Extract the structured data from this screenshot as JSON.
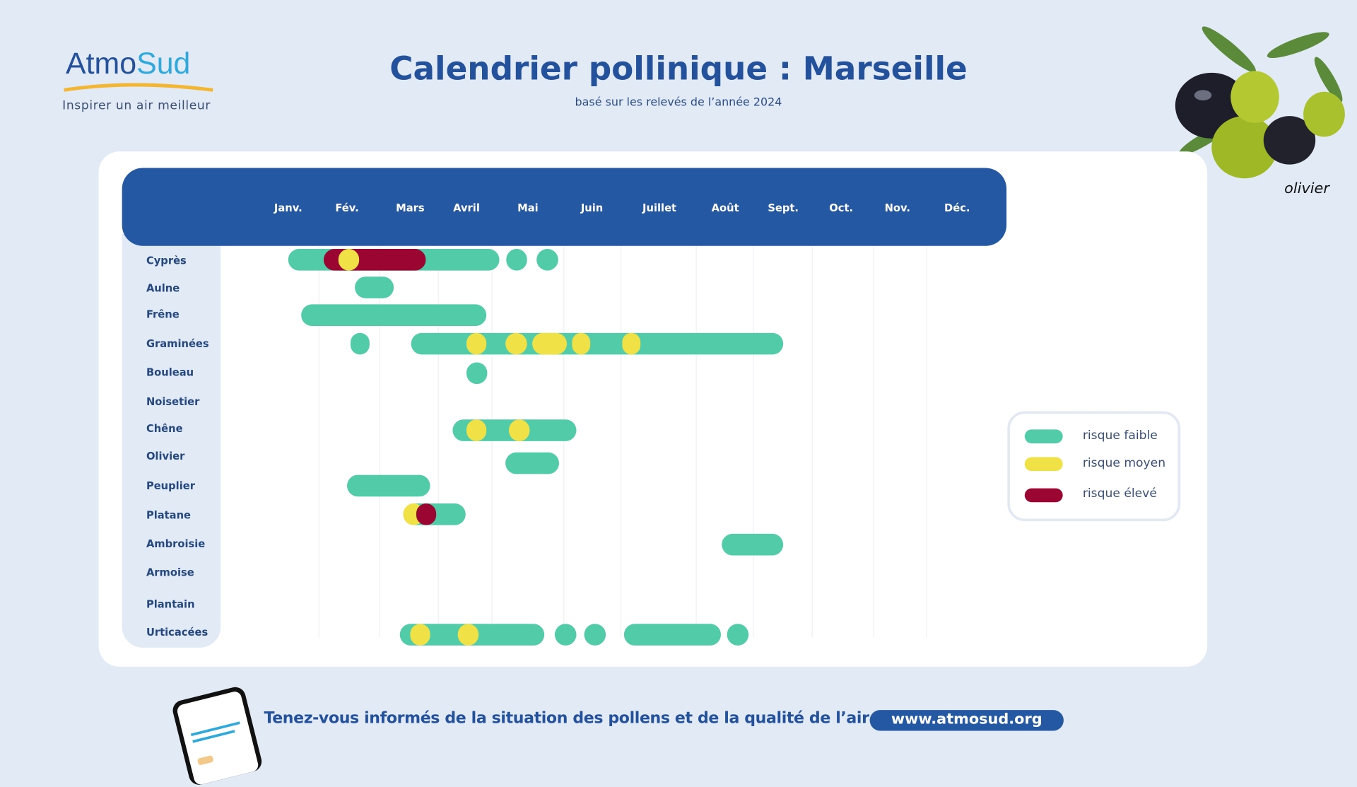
{
  "logo": {
    "part1": "Atmo",
    "part2": "Sud",
    "tagline": "Inspirer un air meilleur"
  },
  "header": {
    "title": "Calendrier pollinique : Marseille",
    "subtitle": "basé sur les relevés de l’année 2024"
  },
  "illustration": {
    "label": "olivier"
  },
  "colors": {
    "faible": "#52cba9",
    "moyen": "#f0e146",
    "eleve": "#9a0532",
    "header": "#2558a3"
  },
  "legend": [
    {
      "label": "risque faible",
      "level": "faible"
    },
    {
      "label": "risque moyen",
      "level": "moyen"
    },
    {
      "label": "risque élevé",
      "level": "eleve"
    }
  ],
  "chart_data": {
    "type": "gantt",
    "months": [
      "Janv.",
      "Fév.",
      "Mars",
      "Avril",
      "Mai",
      "Juin",
      "Juillet",
      "Août",
      "Sept.",
      "Oct.",
      "Nov.",
      "Déc."
    ],
    "x_unit": "month (1 = Janv., 12 = Déc.)",
    "pollens": [
      {
        "name": "Cyprès",
        "periods": [
          [
            1.0,
            4.54,
            "faible"
          ],
          [
            4.65,
            4.99,
            "faible"
          ],
          [
            5.14,
            5.47,
            "faible"
          ],
          [
            1.6,
            3.28,
            "eleve"
          ],
          [
            1.85,
            2.19,
            "moyen"
          ]
        ]
      },
      {
        "name": "Aulne",
        "periods": [
          [
            2.12,
            2.74,
            "faible"
          ]
        ]
      },
      {
        "name": "Frêne",
        "periods": [
          [
            1.22,
            4.32,
            "faible"
          ]
        ]
      },
      {
        "name": "Graminées",
        "periods": [
          [
            2.06,
            2.36,
            "faible"
          ],
          [
            3.02,
            9.0,
            "faible"
          ],
          [
            4.0,
            4.32,
            "moyen"
          ],
          [
            4.63,
            4.99,
            "moyen"
          ],
          [
            5.07,
            5.61,
            "moyen"
          ],
          [
            5.69,
            5.97,
            "moyen"
          ],
          [
            6.45,
            6.72,
            "moyen"
          ]
        ]
      },
      {
        "name": "Bouleau",
        "periods": [
          [
            4.0,
            4.34,
            "faible"
          ]
        ]
      },
      {
        "name": "Noisetier",
        "periods": []
      },
      {
        "name": "Chêne",
        "periods": [
          [
            3.75,
            5.76,
            "faible"
          ],
          [
            4.0,
            4.32,
            "moyen"
          ],
          [
            4.69,
            5.03,
            "moyen"
          ]
        ]
      },
      {
        "name": "Olivier",
        "periods": [
          [
            4.63,
            5.49,
            "faible"
          ]
        ]
      },
      {
        "name": "Peuplier",
        "periods": [
          [
            2.0,
            3.35,
            "faible"
          ]
        ]
      },
      {
        "name": "Platane",
        "periods": [
          [
            2.89,
            3.98,
            "faible"
          ],
          [
            2.89,
            3.25,
            "moyen"
          ],
          [
            3.11,
            3.46,
            "eleve"
          ]
        ]
      },
      {
        "name": "Ambroisie",
        "periods": [
          [
            7.95,
            9.0,
            "faible"
          ]
        ]
      },
      {
        "name": "Armoise",
        "periods": []
      },
      {
        "name": "Plantain",
        "periods": []
      },
      {
        "name": "Urticacées",
        "periods": [
          [
            2.84,
            5.26,
            "faible"
          ],
          [
            3.0,
            3.35,
            "moyen"
          ],
          [
            3.85,
            4.2,
            "moyen"
          ],
          [
            5.42,
            5.76,
            "faible"
          ],
          [
            5.88,
            6.21,
            "faible"
          ],
          [
            6.47,
            7.93,
            "faible"
          ],
          [
            8.03,
            8.4,
            "faible"
          ]
        ]
      }
    ]
  },
  "footer": {
    "text": "Tenez-vous informés de la situation des pollens et de la qualité de l’air sur :",
    "url": "www.atmosud.org"
  }
}
